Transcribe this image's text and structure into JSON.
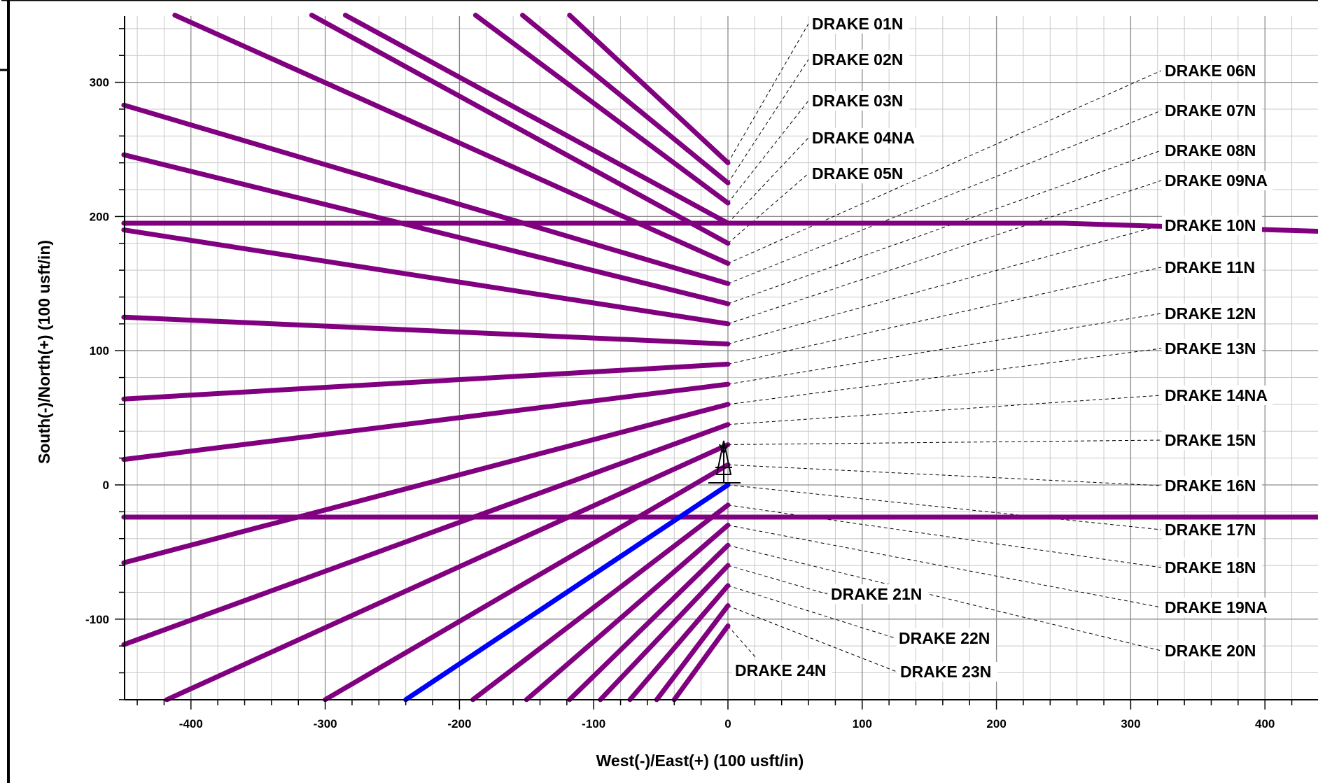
{
  "chart_data": {
    "type": "line",
    "xlabel": "West(-)/East(+) (100 usft/in)",
    "ylabel": "South(-)/North(+) (100 usft/in)",
    "xlim": [
      -450,
      470
    ],
    "ylim": [
      -160,
      350
    ],
    "xticks": [
      -400,
      -300,
      -200,
      -100,
      0,
      100,
      200,
      300,
      400
    ],
    "yticks": [
      -100,
      0,
      100,
      200,
      300
    ],
    "grid": true,
    "colors": {
      "well": "#800080",
      "highlight": "#0000ff",
      "leader": "#000000"
    },
    "series": [
      {
        "name": "DRAKE 01N",
        "x": [
          0,
          -118
        ],
        "y": [
          240,
          350
        ]
      },
      {
        "name": "DRAKE 02N",
        "x": [
          0,
          -153
        ],
        "y": [
          225,
          350
        ]
      },
      {
        "name": "DRAKE 03N",
        "x": [
          0,
          -188
        ],
        "y": [
          210,
          350
        ]
      },
      {
        "name": "DRAKE 04NA",
        "x": [
          0,
          -285
        ],
        "y": [
          195,
          350
        ]
      },
      {
        "name": "DRAKE 05N",
        "x": [
          0,
          -310
        ],
        "y": [
          180,
          350
        ]
      },
      {
        "name": "DRAKE 06N",
        "x": [
          0,
          -412
        ],
        "y": [
          165,
          350
        ]
      },
      {
        "name": "DRAKE 07N",
        "x": [
          0,
          -450
        ],
        "y": [
          150,
          283
        ]
      },
      {
        "name": "DRAKE 08N",
        "x": [
          0,
          -450
        ],
        "y": [
          135,
          246
        ]
      },
      {
        "name": "DRAKE 09NA",
        "x": [
          -450,
          0,
          200,
          250,
          470
        ],
        "y": [
          195,
          195,
          195,
          195,
          188
        ]
      },
      {
        "name": "DRAKE 10N",
        "x": [
          0,
          -450
        ],
        "y": [
          120,
          190
        ]
      },
      {
        "name": "DRAKE 11N",
        "x": [
          0,
          -450
        ],
        "y": [
          105,
          125
        ]
      },
      {
        "name": "DRAKE 12N",
        "x": [
          0,
          -450
        ],
        "y": [
          90,
          64
        ]
      },
      {
        "name": "DRAKE 13N",
        "x": [
          0,
          -450
        ],
        "y": [
          75,
          19
        ]
      },
      {
        "name": "DRAKE 14NA",
        "x": [
          -450,
          470
        ],
        "y": [
          -24,
          -24
        ]
      },
      {
        "name": "DRAKE 15N",
        "x": [
          0,
          -450
        ],
        "y": [
          60,
          -58
        ]
      },
      {
        "name": "DRAKE 16N",
        "x": [
          0,
          -450
        ],
        "y": [
          45,
          -119
        ]
      },
      {
        "name": "DRAKE 17N",
        "x": [
          0,
          -418
        ],
        "y": [
          30,
          -160
        ]
      },
      {
        "name": "DRAKE 18N",
        "x": [
          0,
          -300
        ],
        "y": [
          15,
          -160
        ]
      },
      {
        "name": "DRAKE 19NA",
        "x": [
          0,
          -240
        ],
        "y": [
          0,
          -160
        ]
      },
      {
        "name": "DRAKE 20N",
        "x": [
          0,
          -190
        ],
        "y": [
          -15,
          -160
        ]
      },
      {
        "name": "DRAKE 21N",
        "x": [
          0,
          -150
        ],
        "y": [
          -30,
          -160
        ]
      },
      {
        "name": "DRAKE 22N",
        "x": [
          0,
          -118
        ],
        "y": [
          -45,
          -160
        ]
      },
      {
        "name": "DRAKE 23N",
        "x": [
          0,
          -95
        ],
        "y": [
          -60,
          -160
        ]
      },
      {
        "name": "DRAKE 24N",
        "x": [
          0,
          -73
        ],
        "y": [
          -75,
          -160
        ]
      },
      {
        "name": "",
        "x": [
          0,
          -53
        ],
        "y": [
          -90,
          -160
        ]
      },
      {
        "name": "",
        "x": [
          0,
          -40
        ],
        "y": [
          -105,
          -160
        ]
      }
    ],
    "labels": [
      {
        "text": "DRAKE 01N",
        "anchor": [
          0,
          240
        ]
      },
      {
        "text": "DRAKE 02N",
        "anchor": [
          0,
          225
        ]
      },
      {
        "text": "DRAKE 03N",
        "anchor": [
          0,
          210
        ]
      },
      {
        "text": "DRAKE 04NA",
        "anchor": [
          0,
          195
        ]
      },
      {
        "text": "DRAKE 05N",
        "anchor": [
          0,
          180
        ]
      },
      {
        "text": "DRAKE 06N",
        "anchor": [
          0,
          165
        ]
      },
      {
        "text": "DRAKE 07N",
        "anchor": [
          0,
          150
        ]
      },
      {
        "text": "DRAKE 08N",
        "anchor": [
          0,
          135
        ]
      },
      {
        "text": "DRAKE 09NA",
        "anchor": [
          0,
          120
        ]
      },
      {
        "text": "DRAKE 10N",
        "anchor": [
          0,
          105
        ]
      },
      {
        "text": "DRAKE 11N",
        "anchor": [
          0,
          90
        ]
      },
      {
        "text": "DRAKE 12N",
        "anchor": [
          0,
          75
        ]
      },
      {
        "text": "DRAKE 13N",
        "anchor": [
          0,
          60
        ]
      },
      {
        "text": "DRAKE 14NA",
        "anchor": [
          0,
          45
        ]
      },
      {
        "text": "DRAKE 15N",
        "anchor": [
          0,
          30
        ]
      },
      {
        "text": "DRAKE 16N",
        "anchor": [
          0,
          15
        ]
      },
      {
        "text": "DRAKE 17N",
        "anchor": [
          0,
          0
        ]
      },
      {
        "text": "DRAKE 18N",
        "anchor": [
          0,
          -15
        ]
      },
      {
        "text": "DRAKE 19NA",
        "anchor": [
          0,
          -30
        ]
      },
      {
        "text": "DRAKE 20N",
        "anchor": [
          0,
          -45
        ]
      },
      {
        "text": "DRAKE 21N",
        "anchor": [
          0,
          -60
        ]
      },
      {
        "text": "DRAKE 22N",
        "anchor": [
          0,
          -75
        ]
      },
      {
        "text": "DRAKE 23N",
        "anchor": [
          0,
          -90
        ]
      },
      {
        "text": "DRAKE 24N",
        "anchor": [
          0,
          -105
        ]
      }
    ],
    "highlight_series": "DRAKE 19NA"
  }
}
